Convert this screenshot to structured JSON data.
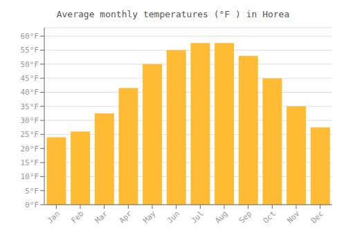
{
  "chart_data": {
    "type": "bar",
    "title": "Average monthly temperatures (°F ) in Horea",
    "categories": [
      "Jan",
      "Feb",
      "Mar",
      "Apr",
      "May",
      "Jun",
      "Jul",
      "Aug",
      "Sep",
      "Oct",
      "Nov",
      "Dec"
    ],
    "values": [
      24,
      26,
      32.5,
      41.5,
      50,
      55,
      57.5,
      57.5,
      53,
      45,
      35,
      27.5
    ],
    "color": "#FFBB33",
    "ylim": [
      0,
      63
    ],
    "yticks": [
      {
        "value": 0,
        "label": "0°F"
      },
      {
        "value": 5,
        "label": "5°F"
      },
      {
        "value": 10,
        "label": "10°F"
      },
      {
        "value": 15,
        "label": "15°F"
      },
      {
        "value": 20,
        "label": "20°F"
      },
      {
        "value": 25,
        "label": "25°F"
      },
      {
        "value": 30,
        "label": "30°F"
      },
      {
        "value": 35,
        "label": "35°F"
      },
      {
        "value": 40,
        "label": "40°F"
      },
      {
        "value": 45,
        "label": "45°F"
      },
      {
        "value": 50,
        "label": "50°F"
      },
      {
        "value": 55,
        "label": "55°F"
      },
      {
        "value": 60,
        "label": "60°F"
      }
    ],
    "grid": true
  }
}
